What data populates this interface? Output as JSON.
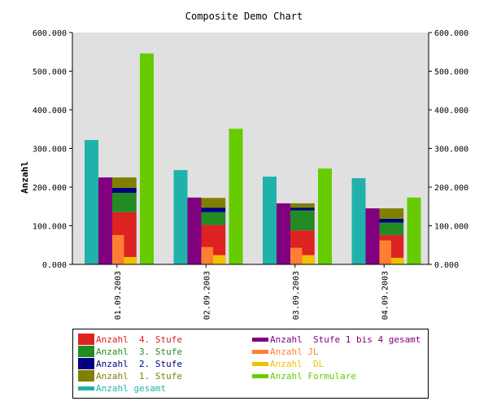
{
  "chart_data": {
    "type": "bar",
    "title": "Composite Demo Chart",
    "ylabel": "Anzahl",
    "xlabel": "",
    "ylim": [
      0,
      600000
    ],
    "yticks": [
      "0.000",
      "100.000",
      "200.000",
      "300.000",
      "400.000",
      "500.000",
      "600.000"
    ],
    "categories": [
      "01.09.2003",
      "02.09.2003",
      "03.09.2003",
      "04.09.2003"
    ],
    "plot_background": "#e0e0e0",
    "grid": false,
    "right_axis": true,
    "legend_placement": "bottom",
    "bar_groups": [
      "gesamt",
      "stufe_gesamt",
      "stacked",
      "jl_dl",
      "formulare"
    ],
    "series": [
      {
        "key": "gesamt",
        "name": "Anzahl gesamt",
        "color": "#20b2aa",
        "group": "gesamt",
        "values": [
          322000,
          244000,
          227000,
          223000
        ]
      },
      {
        "key": "stufe_gesamt",
        "name": "Anzahl  Stufe 1 bis 4 gesamt",
        "color": "#800080",
        "group": "stufe_gesamt",
        "values": [
          225000,
          173000,
          158000,
          145000
        ]
      },
      {
        "key": "stufe4",
        "name": "Anzahl  4. Stufe",
        "color": "#dd2222",
        "group": "stacked",
        "stack_order": 0,
        "values": [
          135000,
          102000,
          88000,
          76000
        ]
      },
      {
        "key": "stufe3",
        "name": "Anzahl  3. Stufe",
        "color": "#228b22",
        "group": "stacked",
        "stack_order": 1,
        "values": [
          50000,
          33000,
          52000,
          32000
        ]
      },
      {
        "key": "stufe2",
        "name": "Anzahl  2. Stufe",
        "color": "#000080",
        "group": "stacked",
        "stack_order": 2,
        "values": [
          13000,
          12000,
          7000,
          10000
        ]
      },
      {
        "key": "stufe1",
        "name": "Anzahl  1. Stufe",
        "color": "#808000",
        "group": "stacked",
        "stack_order": 3,
        "values": [
          27000,
          25000,
          11000,
          27000
        ]
      },
      {
        "key": "jl",
        "name": "Anzahl JL",
        "color": "#ff7f32",
        "group": "jl_dl",
        "stack_order": 0,
        "values": [
          76000,
          45000,
          43000,
          62000
        ]
      },
      {
        "key": "dl",
        "name": "Anzahl  DL",
        "color": "#f0c000",
        "group": "jl_dl",
        "stack_order": 1,
        "values": [
          19000,
          24000,
          24000,
          17000
        ],
        "overlay": true
      },
      {
        "key": "formulare",
        "name": "Anzahl Formulare",
        "color": "#66cc00",
        "group": "formulare",
        "values": [
          546000,
          351000,
          248000,
          173000
        ]
      }
    ],
    "legend_order": [
      "stufe4",
      "stufe_gesamt",
      "stufe3",
      "jl",
      "stufe2",
      "dl",
      "stufe1",
      "formulare",
      "gesamt"
    ]
  }
}
